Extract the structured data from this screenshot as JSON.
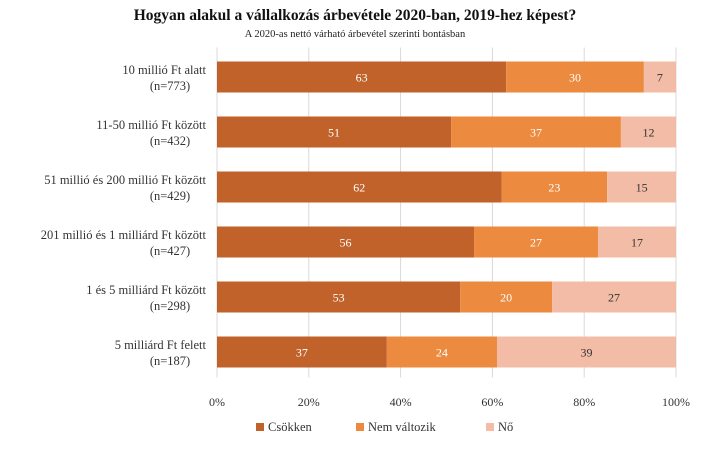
{
  "chart_data": {
    "type": "bar",
    "orientation": "horizontal",
    "stacked": "percent",
    "title": "Hogyan alakul a vállalkozás árbevétele 2020-ban, 2019-hez képest?",
    "subtitle": "A 2020-as nettó várható árbevétel szerinti bontásban",
    "categories": [
      {
        "label": "10 millió Ft alatt",
        "n": "(n=773)"
      },
      {
        "label": "11-50 millió Ft között",
        "n": "(n=432)"
      },
      {
        "label": "51 millió és 200 millió Ft között",
        "n": "(n=429)"
      },
      {
        "label": "201 millió és 1 milliárd Ft között",
        "n": "(n=427)"
      },
      {
        "label": "1 és 5 milliárd Ft között",
        "n": "(n=298)"
      },
      {
        "label": "5 milliárd Ft felett",
        "n": "(n=187)"
      }
    ],
    "series": [
      {
        "name": "Csökken",
        "color": "#c0622a",
        "label_color": "#ffffff",
        "values": [
          63,
          51,
          62,
          56,
          53,
          37
        ]
      },
      {
        "name": "Nem változik",
        "color": "#ec8a3f",
        "label_color": "#ffffff",
        "values": [
          30,
          37,
          23,
          27,
          20,
          24
        ]
      },
      {
        "name": "Nő",
        "color": "#f3bca6",
        "label_color": "#333333",
        "values": [
          7,
          12,
          15,
          17,
          27,
          39
        ]
      }
    ],
    "xlim": [
      0,
      100
    ],
    "xticks": [
      0,
      20,
      40,
      60,
      80,
      100
    ],
    "xtick_labels": [
      "0%",
      "20%",
      "40%",
      "60%",
      "80%",
      "100%"
    ],
    "grid": true,
    "legend_position": "bottom"
  }
}
